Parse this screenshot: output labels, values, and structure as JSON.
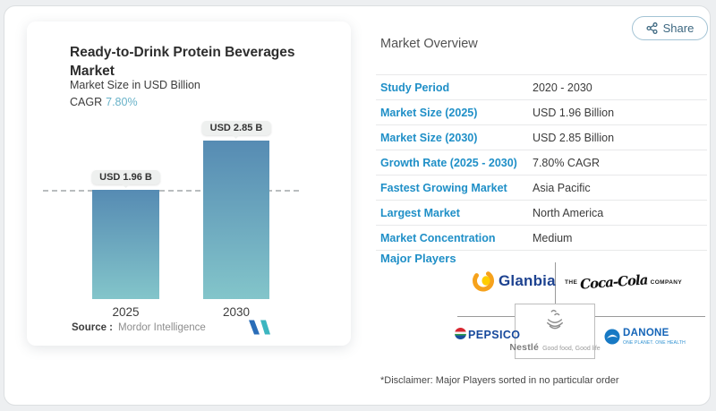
{
  "share": {
    "label": "Share"
  },
  "left_card": {
    "title": "Ready-to-Drink Protein Beverages Market",
    "subtitle": "Market Size in USD Billion",
    "cagr_label": "CAGR",
    "cagr_value": "7.80%",
    "source_label": "Source :",
    "source_value": "Mordor Intelligence"
  },
  "chart_data": {
    "type": "bar",
    "title": "Ready-to-Drink Protein Beverages Market",
    "subtitle": "Market Size in USD Billion",
    "categories": [
      "2025",
      "2030"
    ],
    "values": [
      1.96,
      2.85
    ],
    "bar_labels": [
      "USD 1.96 B",
      "USD 2.85 B"
    ],
    "unit": "USD Billion",
    "cagr": "7.80%",
    "ylim": [
      0,
      3.1
    ],
    "dashed_reference_line_at": 1.96,
    "bar_gradient_top": "#568bb3",
    "bar_gradient_bottom": "#83c5ca",
    "grid": false,
    "legend": "none"
  },
  "overview": {
    "heading": "Market Overview",
    "rows": [
      {
        "label": "Study Period",
        "value": "2020 - 2030"
      },
      {
        "label": "Market Size (2025)",
        "value": "USD 1.96 Billion"
      },
      {
        "label": "Market Size (2030)",
        "value": "USD 2.85 Billion"
      },
      {
        "label": "Growth Rate (2025 - 2030)",
        "value": "7.80% CAGR"
      },
      {
        "label": "Fastest Growing Market",
        "value": "Asia Pacific"
      },
      {
        "label": "Largest Market",
        "value": "North America"
      },
      {
        "label": "Market Concentration",
        "value": "Medium"
      }
    ],
    "major_players_label": "Major Players",
    "players": [
      "Glanbia",
      "The Coca-Cola Company",
      "PepsiCo",
      "Nestlé",
      "Danone"
    ],
    "disclaimer": "*Disclaimer: Major Players sorted in no particular order"
  },
  "logos": {
    "glanbia_text": "Glanbia",
    "coca_the": "THE",
    "coca_script": "Coca-Cola",
    "coca_company": "COMPANY",
    "pepsico_text": "PEPSICO",
    "nestle_text": "Nestlé",
    "nestle_tagline": "Good food, Good life",
    "danone_text": "DANONE",
    "danone_tagline": "ONE PLANET. ONE HEALTH"
  },
  "colors": {
    "accent_blue": "#1f8fc7",
    "cagr_teal": "#68b2c8",
    "bar_top": "#568bb3",
    "bar_bottom": "#83c5ca",
    "label_box": "#eef0ef",
    "share_text": "#3c6780"
  }
}
